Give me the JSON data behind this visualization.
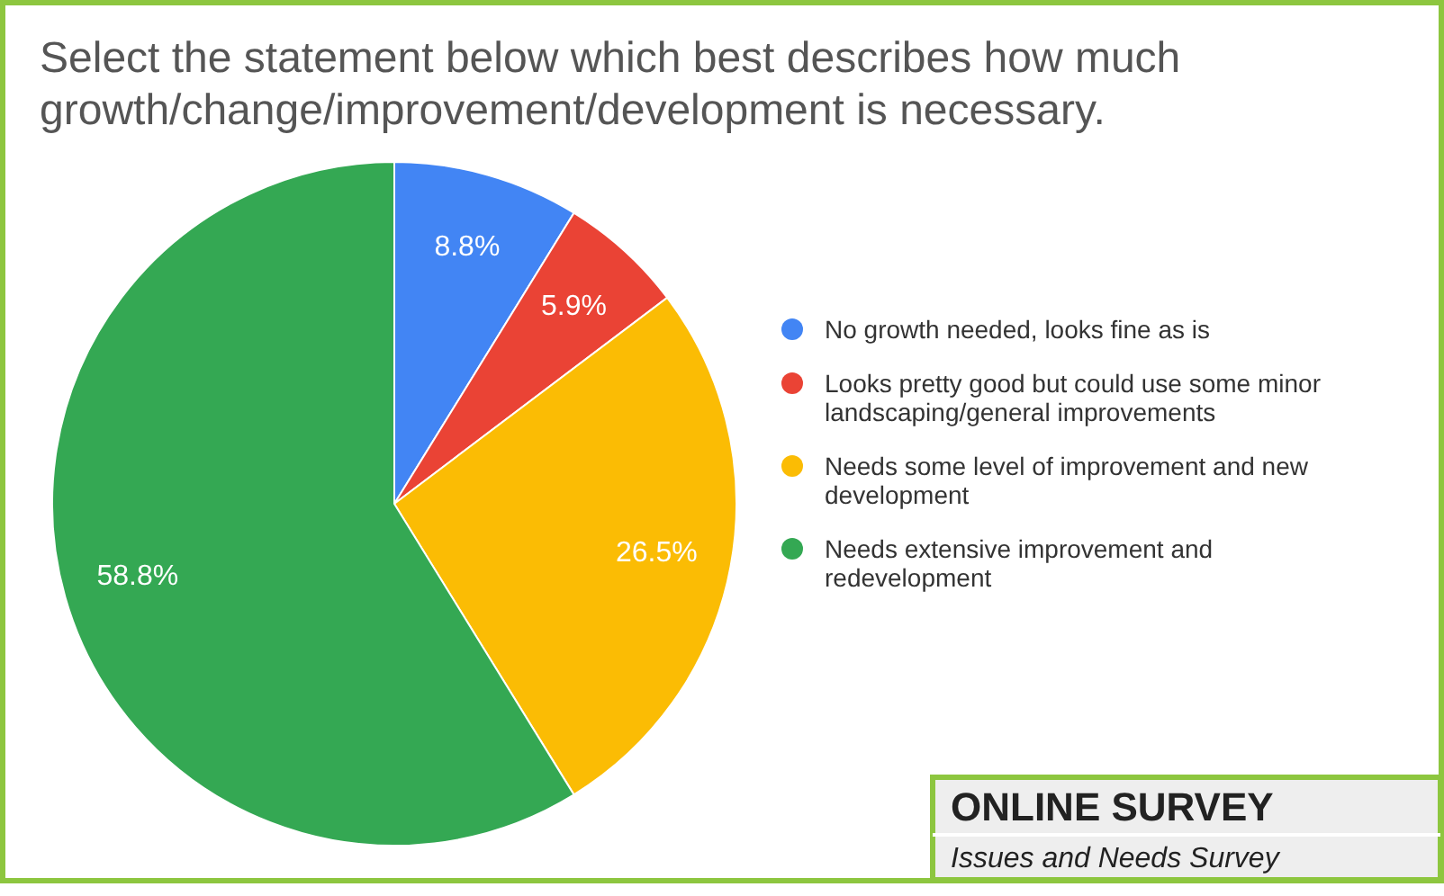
{
  "chart_data": {
    "type": "pie",
    "title": "Select the statement below which best describes how much growth/change/improvement/development is necessary.",
    "categories": [
      "No growth needed, looks fine as is",
      "Looks pretty good but could use some minor landscaping/general improvements",
      "Needs some level of improvement and new development",
      "Needs extensive improvement and redevelopment"
    ],
    "values": [
      8.8,
      5.9,
      26.5,
      58.8
    ],
    "colors": [
      "#4285f4",
      "#ea4335",
      "#fbbc04",
      "#34a853"
    ],
    "value_labels": [
      "8.8%",
      "5.9%",
      "26.5%",
      "58.8%"
    ],
    "legend": "right",
    "annotations": [
      "ONLINE SURVEY",
      "Issues and Needs Survey"
    ]
  }
}
